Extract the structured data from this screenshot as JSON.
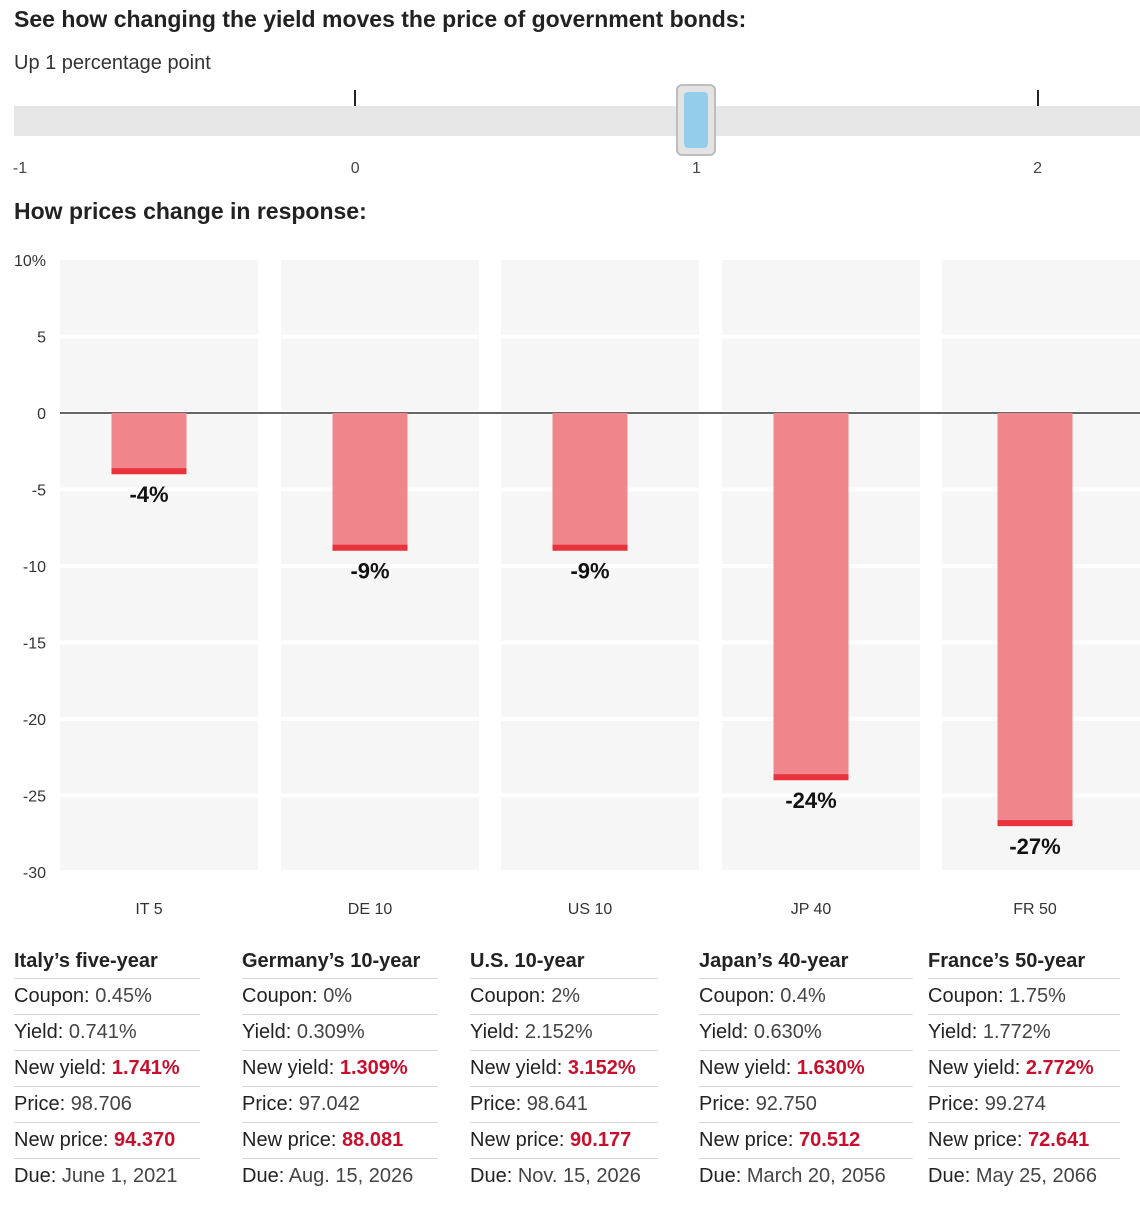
{
  "slider_title": "See how changing the yield moves the price of government bonds:",
  "slider_value_text": "Up 1 percentage point",
  "slider": {
    "ticks": [
      "-1",
      "0",
      "1",
      "2"
    ],
    "min": -1,
    "max": 2.3,
    "value": 1
  },
  "response_title": "How prices change in response:",
  "chart_data": {
    "type": "bar",
    "categories": [
      "IT 5",
      "DE 10",
      "US 10",
      "JP 40",
      "FR 50"
    ],
    "values": [
      -4,
      -9,
      -9,
      -24,
      -27
    ],
    "value_labels": [
      "-4%",
      "-9%",
      "-9%",
      "-24%",
      "-27%"
    ],
    "ylim": [
      -30,
      10
    ],
    "yticks": [
      10,
      5,
      0,
      -5,
      -10,
      -15,
      -20,
      -25,
      -30
    ],
    "ytick_labels": [
      "10%",
      "5",
      "0",
      "-5",
      "-10",
      "-15",
      "-20",
      "-25",
      "-30"
    ],
    "colors": {
      "bar": "#f0868b",
      "edge": "#e8323c",
      "panel": "#f6f6f6"
    }
  },
  "row_labels": {
    "coupon": "Coupon:",
    "yield": "Yield:",
    "new_yield": "New yield:",
    "price": "Price:",
    "new_price": "New price:",
    "due": "Due:"
  },
  "bonds": [
    {
      "name": "Italy’s five-year",
      "coupon": "0.45%",
      "yield": "0.741%",
      "new_yield": "1.741%",
      "price": "98.706",
      "new_price": "94.370",
      "due": "June 1, 2021"
    },
    {
      "name": "Germany’s 10-year",
      "coupon": "0%",
      "yield": "0.309%",
      "new_yield": "1.309%",
      "price": "97.042",
      "new_price": "88.081",
      "due": "Aug. 15, 2026"
    },
    {
      "name": "U.S. 10-year",
      "coupon": "2%",
      "yield": "2.152%",
      "new_yield": "3.152%",
      "price": "98.641",
      "new_price": "90.177",
      "due": "Nov. 15, 2026"
    },
    {
      "name": "Japan’s 40-year",
      "coupon": "0.4%",
      "yield": "0.630%",
      "new_yield": "1.630%",
      "price": "92.750",
      "new_price": "70.512",
      "due": "March 20, 2056"
    },
    {
      "name": "France’s 50-year",
      "coupon": "1.75%",
      "yield": "1.772%",
      "new_yield": "2.772%",
      "price": "99.274",
      "new_price": "72.641",
      "due": "May 25, 2066"
    }
  ]
}
